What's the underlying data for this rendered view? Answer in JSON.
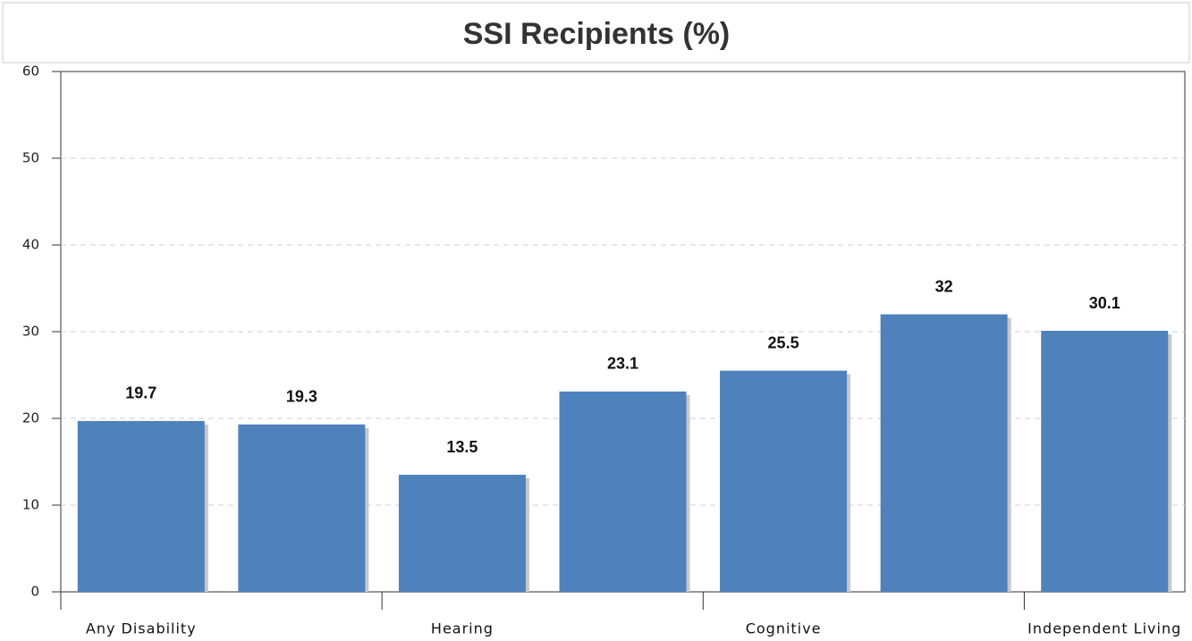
{
  "chart_data": {
    "type": "bar",
    "title": "SSI Recipients (%)",
    "categories": [
      "Any Disability",
      null,
      "Hearing",
      null,
      "Cognitive",
      null,
      "Independent Living"
    ],
    "values": [
      19.7,
      19.3,
      13.5,
      23.1,
      25.5,
      32,
      30.1
    ],
    "color": "#4f81bd",
    "ylim": [
      0,
      60
    ],
    "yticks": [
      0,
      10,
      20,
      30,
      40,
      50,
      60
    ],
    "grid": true
  }
}
